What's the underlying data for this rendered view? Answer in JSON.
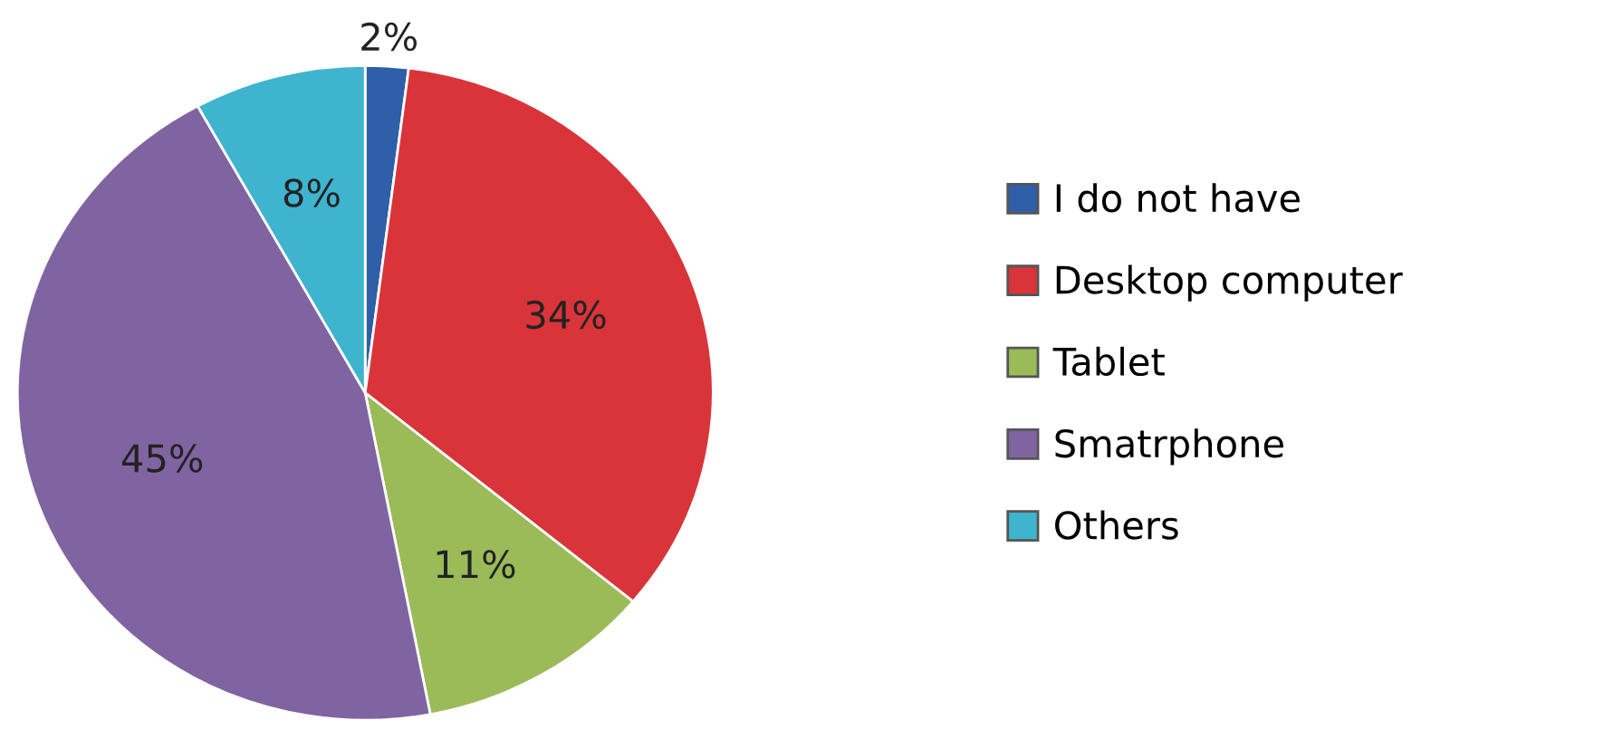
{
  "chart_data": {
    "type": "pie",
    "categories": [
      "I do not have",
      "Desktop computer",
      "Tablet",
      "Smatrphone",
      "Others"
    ],
    "values": [
      2,
      34,
      11,
      45,
      8
    ],
    "colors": [
      "#2e5fa8",
      "#d9343a",
      "#9bbb59",
      "#8064a2",
      "#3fb4cf"
    ],
    "value_labels": [
      "2%",
      "34%",
      "11%",
      "45%",
      "8%"
    ],
    "legend": "right"
  }
}
